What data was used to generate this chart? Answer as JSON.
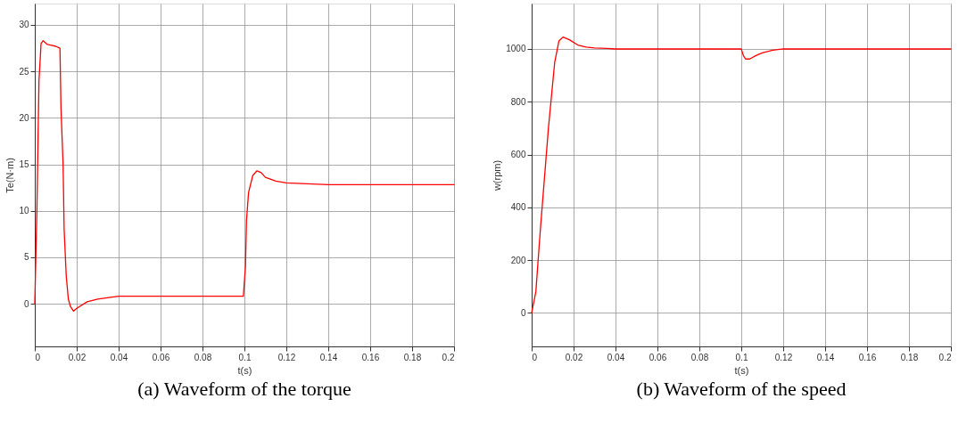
{
  "chart_data": [
    {
      "type": "line",
      "title": "(a) Waveform of the torque",
      "xlabel": "t(s)",
      "ylabel": "Te(N·m)",
      "grid": true,
      "marker": "none",
      "line_style": "solid",
      "xlim": [
        0,
        0.2
      ],
      "xticks": [
        0,
        0.02,
        0.04,
        0.06,
        0.08,
        0.1,
        0.12,
        0.14,
        0.16,
        0.18,
        0.2
      ],
      "ylim": [
        -4.6,
        32.3
      ],
      "yticks": [
        0,
        5,
        10,
        15,
        20,
        25,
        30
      ],
      "series": [
        {
          "color": "#ff0000",
          "x": [
            0,
            0.0005,
            0.001,
            0.002,
            0.003,
            0.004,
            0.006,
            0.008,
            0.01,
            0.012,
            0.0125,
            0.0135,
            0.014,
            0.015,
            0.016,
            0.017,
            0.0185,
            0.02,
            0.025,
            0.03,
            0.04,
            0.05,
            0.06,
            0.07,
            0.08,
            0.09,
            0.0995,
            0.1005,
            0.101,
            0.102,
            0.104,
            0.106,
            0.108,
            0.11,
            0.115,
            0.12,
            0.13,
            0.14,
            0.16,
            0.18,
            0.2
          ],
          "values": [
            0,
            5,
            10,
            24,
            28,
            28.3,
            27.9,
            27.8,
            27.7,
            27.5,
            21,
            15,
            8,
            3,
            0.5,
            -0.3,
            -0.8,
            -0.5,
            0.2,
            0.5,
            0.8,
            0.8,
            0.8,
            0.8,
            0.8,
            0.8,
            0.8,
            4,
            9,
            12,
            13.8,
            14.3,
            14.1,
            13.6,
            13.2,
            13.0,
            12.9,
            12.8,
            12.8,
            12.8,
            12.8
          ]
        }
      ]
    },
    {
      "type": "line",
      "title": "(b) Waveform of the speed",
      "xlabel": "t(s)",
      "ylabel": "w(rpm)",
      "grid": true,
      "marker": "none",
      "line_style": "solid",
      "xlim": [
        0,
        0.2
      ],
      "xticks": [
        0,
        0.02,
        0.04,
        0.06,
        0.08,
        0.1,
        0.12,
        0.14,
        0.16,
        0.18,
        0.2
      ],
      "ylim": [
        -127,
        1172
      ],
      "yticks": [
        0,
        200,
        400,
        600,
        800,
        1000
      ],
      "series": [
        {
          "color": "#ff0000",
          "x": [
            0,
            0.002,
            0.004,
            0.006,
            0.008,
            0.011,
            0.013,
            0.015,
            0.018,
            0.022,
            0.026,
            0.03,
            0.036,
            0.04,
            0.06,
            0.08,
            0.1,
            0.101,
            0.102,
            0.104,
            0.107,
            0.11,
            0.115,
            0.12,
            0.14,
            0.16,
            0.18,
            0.2
          ],
          "values": [
            0,
            80,
            300,
            500,
            700,
            950,
            1030,
            1045,
            1035,
            1015,
            1007,
            1004,
            1002,
            1000,
            1000,
            1000,
            1000,
            975,
            962,
            962,
            975,
            985,
            995,
            1000,
            1000,
            1000,
            1000,
            1000
          ]
        }
      ]
    }
  ]
}
